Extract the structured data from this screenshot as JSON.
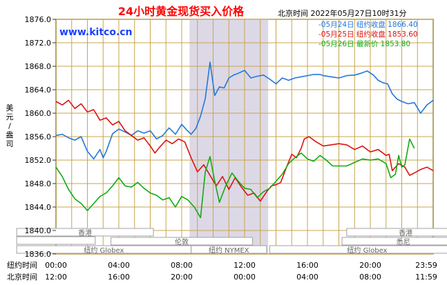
{
  "header": {
    "title": "24小时黄金现货买入价格",
    "timestamp": "北京时间 2022年05月27日10时31分",
    "website": "www.kitco.cn"
  },
  "colors": {
    "title": "#ff0000",
    "website": "#1a3fff",
    "frame": "#a08838",
    "grid": "#c8a44c",
    "band": "#dcd8e6",
    "series_0524": "#2277dd",
    "series_0525": "#dd1111",
    "series_0526": "#11aa11"
  },
  "y_axis_label": "美元/盎司",
  "row_labels": {
    "ny_time": "纽约时间",
    "bj_time": "北京时间"
  },
  "markets": {
    "hongkong": "香港",
    "london": "伦敦",
    "ny_globex": "纽约 Globex",
    "nymex": "纽约 NYMEX",
    "sydney": "悉尼"
  },
  "chart_data": {
    "type": "line",
    "title": "24小时黄金现货买入价格",
    "ylabel": "美元/盎司",
    "ylim": [
      1836,
      1876
    ],
    "yticks": [
      "1876.0",
      "1872.0",
      "1868.0",
      "1864.0",
      "1860.0",
      "1856.0",
      "1852.0",
      "1848.0",
      "1844.0",
      "1840.0",
      "1836.0"
    ],
    "x_unit": "hours (New York time)",
    "xlim": [
      0,
      24
    ],
    "xticks_ny": [
      "00:00",
      "04:00",
      "08:00",
      "12:00",
      "16:00",
      "20:00",
      "23:59"
    ],
    "xticks_bj": [
      "12:00",
      "16:00",
      "20:00",
      "00:00",
      "04:00",
      "08:00",
      "11:59"
    ],
    "highlight_range": [
      8.5,
      13.5
    ],
    "legend_position": "top-right",
    "grid": true,
    "series": [
      {
        "name": "-05月24日 纽约收盘 1866.40",
        "color": "#2277dd",
        "x": [
          0,
          0.4,
          0.8,
          1.2,
          1.6,
          2,
          2.4,
          2.8,
          3,
          3.2,
          3.6,
          4,
          4.4,
          4.8,
          5.2,
          5.6,
          6,
          6.4,
          6.8,
          7.2,
          7.6,
          8,
          8.3,
          8.6,
          8.9,
          9.2,
          9.5,
          9.8,
          10.1,
          10.4,
          10.7,
          11,
          11.3,
          11.6,
          12,
          12.4,
          12.8,
          13.2,
          13.6,
          14,
          14.4,
          14.8,
          15.2,
          15.6,
          16,
          16.4,
          16.8,
          17,
          17.5,
          18,
          18.5,
          19,
          19.4,
          19.8,
          20.2,
          20.5,
          20.8,
          21.1,
          21.4,
          21.7,
          22,
          22.4,
          22.8,
          23.2,
          23.6,
          24
        ],
        "y": [
          1856.2,
          1856.4,
          1855.8,
          1855.4,
          1856.0,
          1853.5,
          1852.2,
          1853.8,
          1852.4,
          1853.5,
          1856.5,
          1857.3,
          1856.8,
          1856.2,
          1857.0,
          1856.6,
          1857.0,
          1855.6,
          1856.2,
          1857.5,
          1856.4,
          1858.1,
          1857.2,
          1856.4,
          1857.4,
          1859.5,
          1862.5,
          1868.7,
          1863.0,
          1864.5,
          1864.3,
          1866.0,
          1866.5,
          1866.8,
          1867.3,
          1866.0,
          1866.3,
          1866.5,
          1865.8,
          1865.0,
          1866.0,
          1865.6,
          1866.0,
          1866.2,
          1866.4,
          1866.6,
          1866.6,
          1866.4,
          1866.2,
          1866.0,
          1866.4,
          1866.5,
          1866.8,
          1867.2,
          1866.5,
          1865.6,
          1865.2,
          1865.0,
          1863.3,
          1862.4,
          1862.0,
          1861.6,
          1861.8,
          1860.0,
          1861.4,
          1862.2
        ]
      },
      {
        "name": "-05月25日 纽约收盘 1853.60",
        "color": "#dd1111",
        "x": [
          0,
          0.4,
          0.8,
          1.2,
          1.6,
          2,
          2.4,
          2.8,
          3.2,
          3.6,
          4,
          4.4,
          4.8,
          5.2,
          5.6,
          6,
          6.3,
          6.6,
          7,
          7.4,
          7.8,
          8.2,
          8.6,
          9,
          9.4,
          9.8,
          10.2,
          10.6,
          11,
          11.4,
          11.8,
          12.2,
          12.6,
          13,
          13.4,
          13.7,
          14,
          14.3,
          14.7,
          15,
          15.3,
          15.6,
          15.8,
          16.1,
          16.5,
          17,
          17.5,
          18,
          18.5,
          19,
          19.5,
          20,
          20.5,
          21,
          21.2,
          21.4,
          21.8,
          22.2,
          22.5,
          22.8,
          23.2,
          23.6,
          24
        ],
        "y": [
          1862.0,
          1861.4,
          1862.2,
          1860.8,
          1861.6,
          1860.2,
          1860.6,
          1858.8,
          1859.2,
          1858.0,
          1858.6,
          1857.0,
          1856.2,
          1855.4,
          1855.8,
          1854.4,
          1853.2,
          1854.2,
          1855.4,
          1854.8,
          1855.6,
          1855.1,
          1852.4,
          1850.0,
          1851.2,
          1849.4,
          1847.6,
          1849.2,
          1847.0,
          1849.0,
          1847.4,
          1846.0,
          1846.4,
          1845.0,
          1846.6,
          1847.6,
          1847.8,
          1848.2,
          1851.0,
          1853.0,
          1852.4,
          1854.0,
          1855.6,
          1856.0,
          1855.2,
          1854.4,
          1854.6,
          1854.8,
          1854.6,
          1853.8,
          1854.4,
          1853.4,
          1853.8,
          1852.8,
          1853.0,
          1850.2,
          1851.4,
          1850.8,
          1849.4,
          1849.8,
          1850.4,
          1850.8,
          1850.2
        ]
      },
      {
        "name": "-05月26日 最新价 1853.80",
        "color": "#11aa11",
        "x": [
          0,
          0.4,
          0.8,
          1.2,
          1.6,
          2,
          2.4,
          2.8,
          3.2,
          3.6,
          4,
          4.4,
          4.8,
          5.2,
          5.6,
          6,
          6.4,
          6.8,
          7.2,
          7.6,
          8,
          8.4,
          8.8,
          9.2,
          9.5,
          9.8,
          10.1,
          10.4,
          10.8,
          11.2,
          11.6,
          12,
          12.4,
          12.8,
          13.2,
          13.6,
          14,
          14.4,
          14.8,
          15.2,
          15.6,
          16,
          16.4,
          16.8,
          17.2,
          17.6,
          18,
          18.5,
          19,
          19.5,
          20,
          20.5,
          21,
          21.3,
          21.6,
          21.8,
          22,
          22.2,
          22.5,
          22.8
        ],
        "y": [
          1850.8,
          1849.2,
          1847.0,
          1845.4,
          1844.6,
          1843.4,
          1844.6,
          1845.8,
          1846.4,
          1847.6,
          1849.0,
          1847.6,
          1847.4,
          1848.2,
          1847.2,
          1846.4,
          1846.0,
          1845.2,
          1845.6,
          1844.0,
          1845.8,
          1845.2,
          1844.0,
          1842.2,
          1850.0,
          1852.6,
          1848.4,
          1844.8,
          1847.6,
          1849.8,
          1848.4,
          1847.2,
          1847.0,
          1845.6,
          1846.6,
          1847.2,
          1848.4,
          1849.6,
          1851.4,
          1852.4,
          1853.2,
          1852.2,
          1851.8,
          1852.8,
          1852.0,
          1851.0,
          1851.0,
          1851.0,
          1851.6,
          1852.2,
          1852.0,
          1852.2,
          1851.4,
          1849.0,
          1849.6,
          1852.8,
          1850.8,
          1851.2,
          1855.6,
          1854.0
        ]
      }
    ]
  }
}
